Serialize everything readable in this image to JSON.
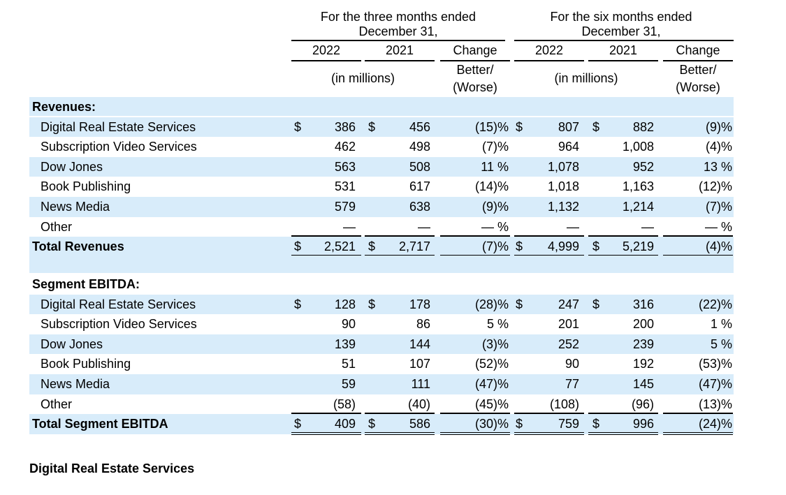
{
  "header": {
    "three_months": "For the three months ended",
    "three_months_date": "December 31,",
    "six_months": "For the six months ended",
    "six_months_date": "December 31,",
    "year_a": "2022",
    "year_b": "2021",
    "change": "Change",
    "better": "Better/",
    "worse": "(Worse)",
    "units": "(in millions)"
  },
  "revenues": {
    "title": "Revenues:",
    "rows": [
      {
        "label": "Digital Real Estate Services",
        "d1": "$",
        "v1": "386",
        "d2": "$",
        "v2": "456",
        "ch1": "(15)%",
        "d3": "$",
        "v3": "807",
        "d4": "$",
        "v4": "882",
        "ch2": "(9)%"
      },
      {
        "label": "Subscription Video Services",
        "d1": "",
        "v1": "462",
        "d2": "",
        "v2": "498",
        "ch1": "(7)%",
        "d3": "",
        "v3": "964",
        "d4": "",
        "v4": "1,008",
        "ch2": "(4)%"
      },
      {
        "label": "Dow Jones",
        "d1": "",
        "v1": "563",
        "d2": "",
        "v2": "508",
        "ch1": "11 %",
        "d3": "",
        "v3": "1,078",
        "d4": "",
        "v4": "952",
        "ch2": "13 %"
      },
      {
        "label": "Book Publishing",
        "d1": "",
        "v1": "531",
        "d2": "",
        "v2": "617",
        "ch1": "(14)%",
        "d3": "",
        "v3": "1,018",
        "d4": "",
        "v4": "1,163",
        "ch2": "(12)%"
      },
      {
        "label": "News Media",
        "d1": "",
        "v1": "579",
        "d2": "",
        "v2": "638",
        "ch1": "(9)%",
        "d3": "",
        "v3": "1,132",
        "d4": "",
        "v4": "1,214",
        "ch2": "(7)%"
      },
      {
        "label": "Other",
        "d1": "",
        "v1": "—",
        "d2": "",
        "v2": "—",
        "ch1": "— %",
        "d3": "",
        "v3": "—",
        "d4": "",
        "v4": "—",
        "ch2": "— %"
      }
    ],
    "total": {
      "label": "Total Revenues",
      "d1": "$",
      "v1": "2,521",
      "d2": "$",
      "v2": "2,717",
      "ch1": "(7)%",
      "d3": "$",
      "v3": "4,999",
      "d4": "$",
      "v4": "5,219",
      "ch2": "(4)%"
    }
  },
  "ebitda": {
    "title": "Segment EBITDA:",
    "rows": [
      {
        "label": "Digital Real Estate Services",
        "d1": "$",
        "v1": "128",
        "d2": "$",
        "v2": "178",
        "ch1": "(28)%",
        "d3": "$",
        "v3": "247",
        "d4": "$",
        "v4": "316",
        "ch2": "(22)%"
      },
      {
        "label": "Subscription Video Services",
        "d1": "",
        "v1": "90",
        "d2": "",
        "v2": "86",
        "ch1": "5 %",
        "d3": "",
        "v3": "201",
        "d4": "",
        "v4": "200",
        "ch2": "1 %"
      },
      {
        "label": "Dow Jones",
        "d1": "",
        "v1": "139",
        "d2": "",
        "v2": "144",
        "ch1": "(3)%",
        "d3": "",
        "v3": "252",
        "d4": "",
        "v4": "239",
        "ch2": "5 %"
      },
      {
        "label": "Book Publishing",
        "d1": "",
        "v1": "51",
        "d2": "",
        "v2": "107",
        "ch1": "(52)%",
        "d3": "",
        "v3": "90",
        "d4": "",
        "v4": "192",
        "ch2": "(53)%"
      },
      {
        "label": "News Media",
        "d1": "",
        "v1": "59",
        "d2": "",
        "v2": "111",
        "ch1": "(47)%",
        "d3": "",
        "v3": "77",
        "d4": "",
        "v4": "145",
        "ch2": "(47)%"
      },
      {
        "label": "Other",
        "d1": "",
        "v1": "(58)",
        "d2": "",
        "v2": "(40)",
        "ch1": "(45)%",
        "d3": "",
        "v3": "(108)",
        "d4": "",
        "v4": "(96)",
        "ch2": "(13)%"
      }
    ],
    "total": {
      "label": "Total Segment EBITDA",
      "d1": "$",
      "v1": "409",
      "d2": "$",
      "v2": "586",
      "ch1": "(30)%",
      "d3": "$",
      "v3": "759",
      "d4": "$",
      "v4": "996",
      "ch2": "(24)%"
    }
  },
  "footer": {
    "section_title": "Digital Real Estate Services"
  },
  "colors": {
    "row_band": "#d8ecfa",
    "text": "#000000"
  }
}
